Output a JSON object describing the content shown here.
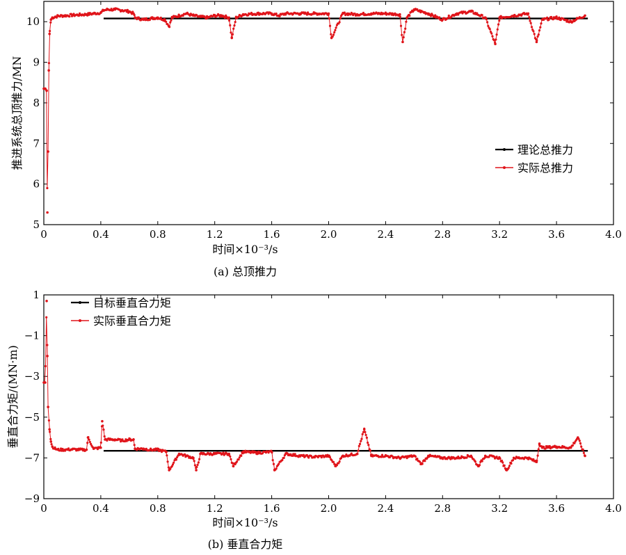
{
  "chart_data": [
    {
      "type": "line",
      "caption": "(a)  总顶推力",
      "xlabel": "时间×10⁻³/s",
      "ylabel": "推进系统总顶推力/MN",
      "xlim": [
        0,
        4.0
      ],
      "ylim": [
        5,
        10.5
      ],
      "xticks": [
        "0",
        "0.4",
        "0.8",
        "1.2",
        "1.6",
        "2.0",
        "2.4",
        "2.8",
        "3.2",
        "3.6",
        "4.0"
      ],
      "yticks": [
        "5",
        "6",
        "7",
        "8",
        "9",
        "10"
      ],
      "legend_position": "right-middle",
      "series": [
        {
          "name": "理论总推力",
          "color": "#000000",
          "x": [
            0.42,
            3.82
          ],
          "y": [
            10.08,
            10.08
          ]
        },
        {
          "name": "实际总推力",
          "color": "#e0141a",
          "x": [
            0.0,
            0.01,
            0.02,
            0.025,
            0.03,
            0.035,
            0.04,
            0.05,
            0.06,
            0.08,
            0.1,
            0.15,
            0.2,
            0.25,
            0.3,
            0.35,
            0.4,
            0.42,
            0.45,
            0.5,
            0.55,
            0.6,
            0.63,
            0.64,
            0.7,
            0.75,
            0.8,
            0.85,
            0.88,
            0.9,
            0.95,
            1.0,
            1.05,
            1.1,
            1.15,
            1.2,
            1.25,
            1.3,
            1.32,
            1.35,
            1.4,
            1.5,
            1.6,
            1.65,
            1.7,
            1.8,
            1.9,
            2.0,
            2.02,
            2.1,
            2.2,
            2.3,
            2.4,
            2.5,
            2.52,
            2.55,
            2.6,
            2.7,
            2.8,
            2.9,
            3.0,
            3.1,
            3.17,
            3.2,
            3.3,
            3.4,
            3.46,
            3.5,
            3.6,
            3.7,
            3.8
          ],
          "y": [
            8.35,
            8.35,
            8.3,
            5.3,
            6.8,
            8.8,
            9.7,
            10.05,
            10.1,
            10.12,
            10.14,
            10.15,
            10.16,
            10.17,
            10.18,
            10.2,
            10.22,
            10.28,
            10.3,
            10.3,
            10.28,
            10.25,
            10.2,
            10.1,
            10.05,
            10.08,
            10.1,
            10.05,
            9.88,
            10.1,
            10.15,
            10.2,
            10.15,
            10.12,
            10.1,
            10.15,
            10.15,
            10.1,
            9.6,
            10.1,
            10.18,
            10.2,
            10.2,
            10.15,
            10.2,
            10.2,
            10.2,
            10.2,
            9.6,
            10.2,
            10.18,
            10.2,
            10.2,
            10.18,
            9.5,
            10.1,
            10.3,
            10.2,
            10.05,
            10.2,
            10.25,
            10.1,
            9.45,
            10.1,
            10.15,
            10.2,
            9.5,
            10.05,
            10.1,
            10.0,
            10.15
          ]
        }
      ]
    },
    {
      "type": "line",
      "caption": "(b)  垂直合力矩",
      "xlabel": "时间×10⁻³/s",
      "ylabel": "垂直合力矩/(MN·m)",
      "xlim": [
        0,
        4.0
      ],
      "ylim": [
        -9,
        1
      ],
      "xticks": [
        "0",
        "0.4",
        "0.8",
        "1.2",
        "1.6",
        "2.0",
        "2.4",
        "2.8",
        "3.2",
        "3.6",
        "4.0"
      ],
      "yticks": [
        "1",
        "−1",
        "−3",
        "−5",
        "−7",
        "−9"
      ],
      "legend_position": "top-left",
      "series": [
        {
          "name": "目标垂直合力矩",
          "color": "#000000",
          "x": [
            0.42,
            3.82
          ],
          "y": [
            -6.65,
            -6.65
          ]
        },
        {
          "name": "实际垂直合力矩",
          "color": "#e0141a",
          "x": [
            0.0,
            0.01,
            0.02,
            0.025,
            0.03,
            0.04,
            0.05,
            0.06,
            0.08,
            0.1,
            0.15,
            0.2,
            0.25,
            0.3,
            0.31,
            0.35,
            0.4,
            0.41,
            0.43,
            0.5,
            0.55,
            0.6,
            0.63,
            0.64,
            0.7,
            0.75,
            0.8,
            0.86,
            0.88,
            0.95,
            1.0,
            1.05,
            1.07,
            1.1,
            1.2,
            1.3,
            1.33,
            1.4,
            1.5,
            1.6,
            1.62,
            1.7,
            1.8,
            1.9,
            2.0,
            2.05,
            2.1,
            2.2,
            2.25,
            2.3,
            2.4,
            2.5,
            2.6,
            2.65,
            2.7,
            2.8,
            2.9,
            3.0,
            3.05,
            3.1,
            3.2,
            3.25,
            3.3,
            3.4,
            3.46,
            3.48,
            3.5,
            3.6,
            3.7,
            3.75,
            3.8
          ],
          "y": [
            -3.3,
            -3.3,
            0.7,
            -2.0,
            -4.5,
            -5.6,
            -6.2,
            -6.45,
            -6.55,
            -6.6,
            -6.6,
            -6.58,
            -6.6,
            -6.6,
            -6.0,
            -6.55,
            -6.5,
            -5.2,
            -6.1,
            -6.1,
            -6.15,
            -6.1,
            -6.1,
            -6.55,
            -6.55,
            -6.6,
            -6.6,
            -6.7,
            -7.6,
            -6.8,
            -6.9,
            -7.0,
            -7.6,
            -6.8,
            -6.8,
            -6.8,
            -7.4,
            -6.7,
            -6.75,
            -6.7,
            -7.6,
            -6.8,
            -6.9,
            -6.95,
            -6.9,
            -7.4,
            -6.9,
            -6.8,
            -5.6,
            -6.9,
            -6.9,
            -7.0,
            -6.9,
            -7.3,
            -6.9,
            -7.0,
            -7.0,
            -6.9,
            -7.4,
            -6.9,
            -7.0,
            -7.6,
            -7.0,
            -7.0,
            -7.2,
            -6.3,
            -6.5,
            -6.45,
            -6.5,
            -6.0,
            -6.9
          ]
        }
      ]
    }
  ]
}
